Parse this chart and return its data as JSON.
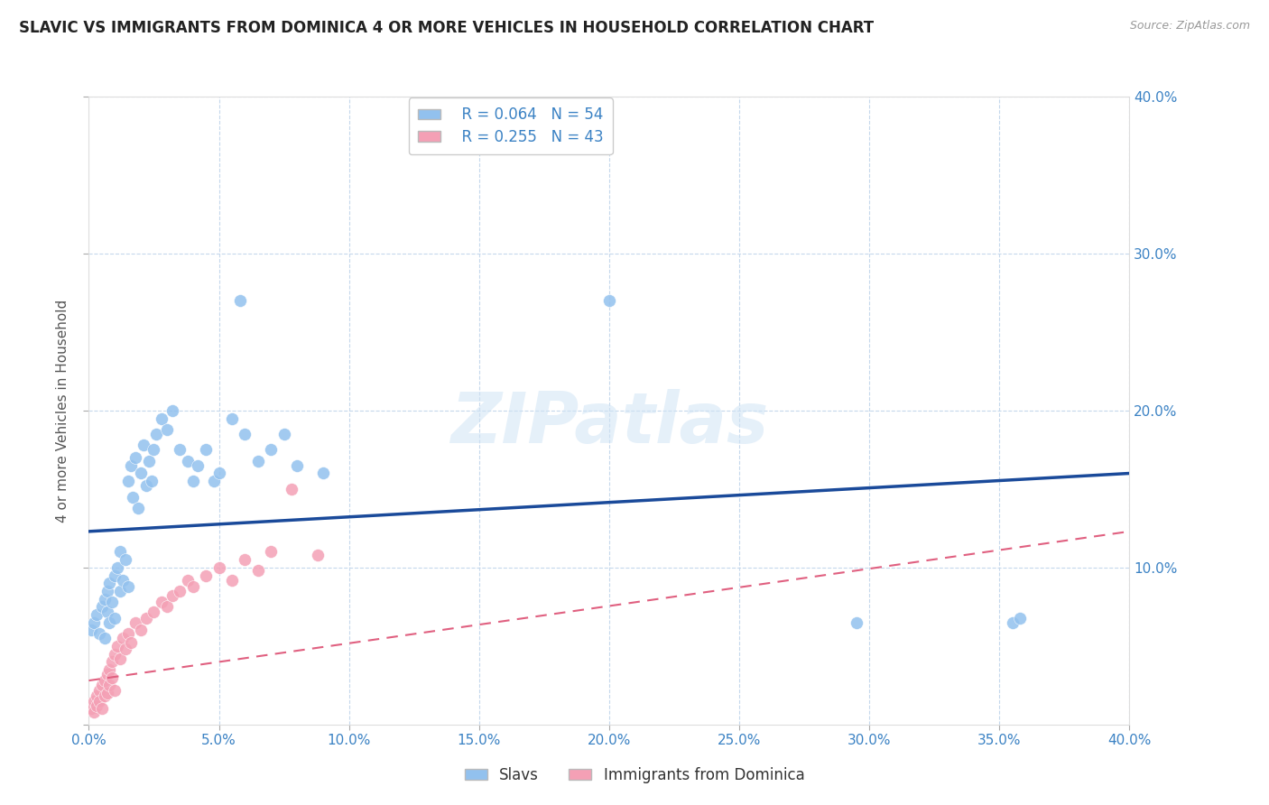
{
  "title": "SLAVIC VS IMMIGRANTS FROM DOMINICA 4 OR MORE VEHICLES IN HOUSEHOLD CORRELATION CHART",
  "source": "Source: ZipAtlas.com",
  "ylabel": "4 or more Vehicles in Household",
  "xlim": [
    0.0,
    0.4
  ],
  "ylim": [
    0.0,
    0.4
  ],
  "ytick_vals": [
    0.0,
    0.1,
    0.2,
    0.3,
    0.4
  ],
  "xtick_vals": [
    0.0,
    0.05,
    0.1,
    0.15,
    0.2,
    0.25,
    0.3,
    0.35,
    0.4
  ],
  "legend_r_blue": "R = 0.064",
  "legend_n_blue": "N = 54",
  "legend_r_pink": "R = 0.255",
  "legend_n_pink": "N = 43",
  "watermark": "ZIPatlas",
  "blue_color": "#92C1EE",
  "pink_color": "#F4A0B5",
  "blue_line_color": "#1A4A9A",
  "pink_line_color": "#E06080",
  "background_color": "#FFFFFF",
  "grid_color": "#C5D8EC",
  "title_color": "#222222",
  "axis_label_color": "#3B82C4",
  "right_tick_color": "#3B82C4",
  "blue_line_y0": 0.123,
  "blue_line_y1": 0.16,
  "pink_line_y0": 0.028,
  "pink_line_y1": 0.123,
  "slavs_x": [
    0.001,
    0.002,
    0.003,
    0.004,
    0.005,
    0.006,
    0.006,
    0.007,
    0.007,
    0.008,
    0.008,
    0.009,
    0.01,
    0.01,
    0.011,
    0.012,
    0.012,
    0.013,
    0.014,
    0.015,
    0.015,
    0.016,
    0.017,
    0.018,
    0.019,
    0.02,
    0.021,
    0.022,
    0.023,
    0.024,
    0.025,
    0.026,
    0.028,
    0.03,
    0.032,
    0.035,
    0.038,
    0.04,
    0.042,
    0.045,
    0.048,
    0.05,
    0.055,
    0.058,
    0.06,
    0.065,
    0.07,
    0.075,
    0.08,
    0.09,
    0.2,
    0.295,
    0.355,
    0.358
  ],
  "slavs_y": [
    0.06,
    0.065,
    0.07,
    0.058,
    0.075,
    0.08,
    0.055,
    0.072,
    0.085,
    0.065,
    0.09,
    0.078,
    0.095,
    0.068,
    0.1,
    0.085,
    0.11,
    0.092,
    0.105,
    0.088,
    0.155,
    0.165,
    0.145,
    0.17,
    0.138,
    0.16,
    0.178,
    0.152,
    0.168,
    0.155,
    0.175,
    0.185,
    0.195,
    0.188,
    0.2,
    0.175,
    0.168,
    0.155,
    0.165,
    0.175,
    0.155,
    0.16,
    0.195,
    0.27,
    0.185,
    0.168,
    0.175,
    0.185,
    0.165,
    0.16,
    0.27,
    0.065,
    0.065,
    0.068
  ],
  "dominica_x": [
    0.001,
    0.002,
    0.002,
    0.003,
    0.003,
    0.004,
    0.004,
    0.005,
    0.005,
    0.006,
    0.006,
    0.007,
    0.007,
    0.008,
    0.008,
    0.009,
    0.009,
    0.01,
    0.01,
    0.011,
    0.012,
    0.013,
    0.014,
    0.015,
    0.016,
    0.018,
    0.02,
    0.022,
    0.025,
    0.028,
    0.03,
    0.032,
    0.035,
    0.038,
    0.04,
    0.045,
    0.05,
    0.055,
    0.06,
    0.065,
    0.07,
    0.078,
    0.088
  ],
  "dominica_y": [
    0.01,
    0.015,
    0.008,
    0.018,
    0.012,
    0.022,
    0.015,
    0.025,
    0.01,
    0.028,
    0.018,
    0.032,
    0.02,
    0.035,
    0.025,
    0.04,
    0.03,
    0.045,
    0.022,
    0.05,
    0.042,
    0.055,
    0.048,
    0.058,
    0.052,
    0.065,
    0.06,
    0.068,
    0.072,
    0.078,
    0.075,
    0.082,
    0.085,
    0.092,
    0.088,
    0.095,
    0.1,
    0.092,
    0.105,
    0.098,
    0.11,
    0.15,
    0.108
  ]
}
